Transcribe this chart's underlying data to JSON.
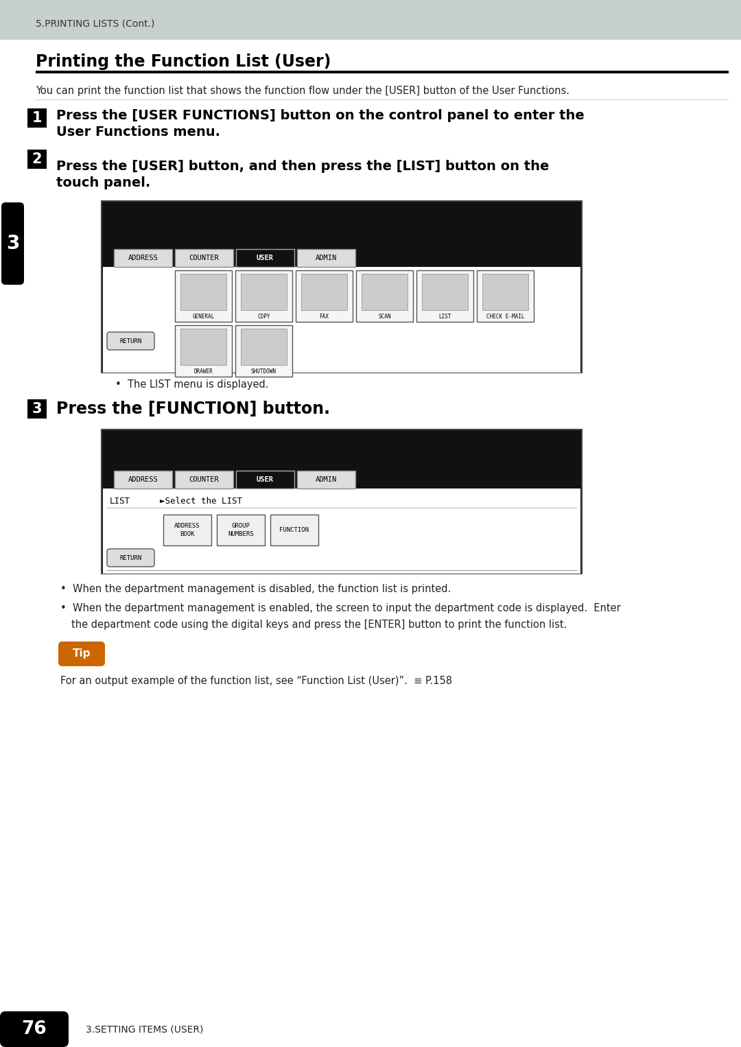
{
  "page_header_text": "5.PRINTING LISTS (Cont.)",
  "page_header_bg": "#c8d0cc",
  "section_title": "Printing the Function List (User)",
  "intro_text": "You can print the function list that shows the function flow under the [USER] button of the User Functions.",
  "step1_num": "1",
  "step1_line1": "Press the [USER FUNCTIONS] button on the control panel to enter the",
  "step1_line2": "User Functions menu.",
  "step2_num": "2",
  "step2_line1": "Press the [USER] button, and then press the [LIST] button on the",
  "step2_line2": "touch panel.",
  "step3_num": "3",
  "step3_text": "Press the [FUNCTION] button.",
  "side_tab_text": "3",
  "side_tab_bg": "#000000",
  "side_tab_text_color": "#ffffff",
  "bullet1": "The LIST menu is displayed.",
  "bullet2_1": "When the department management is disabled, the function list is printed.",
  "bullet2_2": "When the department management is enabled, the screen to input the department code is displayed.  Enter",
  "bullet2_3": "the department code using the digital keys and press the [ENTER] button to print the function list.",
  "tip_label": "Tip",
  "tip_text": "For an output example of the function list, see “Function List (User)”.  ≡ P.158",
  "footer_page_num": "76",
  "footer_text": "3.SETTING ITEMS (USER)",
  "footer_bg": "#000000",
  "footer_text_color": "#ffffff",
  "bg_color": "#ffffff",
  "title_underline_color": "#000000",
  "tab_buttons": [
    [
      "ADDRESS",
      false
    ],
    [
      "COUNTER",
      false
    ],
    [
      "USER",
      true
    ],
    [
      "ADMIN",
      false
    ]
  ],
  "icons1": [
    "GENERAL",
    "COPY",
    "FAX",
    "SCAN",
    "LIST",
    "CHECK E-MAIL"
  ],
  "icons2": [
    "DRAWER",
    "SHUTDOWN"
  ],
  "btn2_labels": [
    "ADDRESS\nBOOK",
    "GROUP\nNUMBERS",
    "FUNCTION"
  ]
}
